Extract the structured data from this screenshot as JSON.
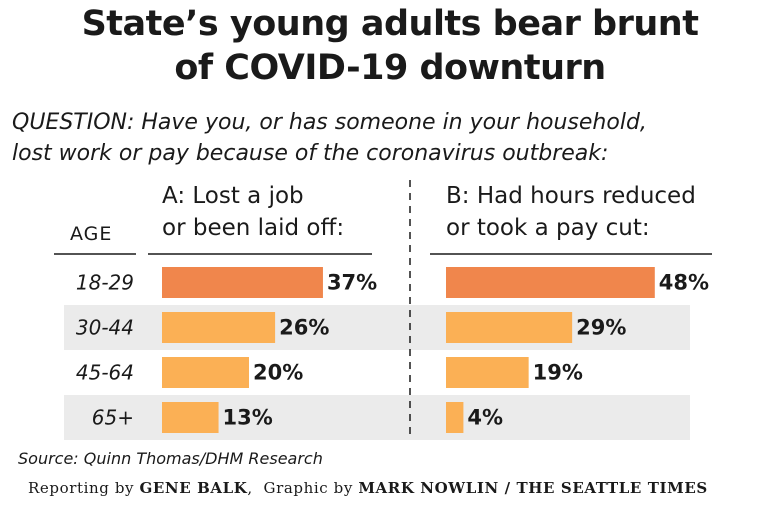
{
  "title_line1": "State’s young adults bear brunt",
  "title_line2": "of COVID-19 downturn",
  "question_line1": "QUESTION: Have you, or has someone in your household,",
  "question_line2": "lost work or pay because of the coronavirus outbreak:",
  "source": "Source: Quinn Thomas/DHM Research",
  "credit": {
    "reporting_prefix": "Reporting by",
    "reporter": "GENE BALK",
    "separator": ",",
    "graphic_prefix": "Graphic by",
    "graphic_by": "MARK NOWLIN / THE SEATTLE TIMES"
  },
  "colors": {
    "highlight_bar": "#f0864c",
    "bar": "#fbb055",
    "stripe": "#ebebeb",
    "text": "#1a1a1a"
  },
  "chart_data": {
    "type": "bar",
    "category_header": "AGE",
    "categories": [
      "18-29",
      "30-44",
      "45-64",
      "65+"
    ],
    "series": [
      {
        "name": "A: Lost a job or been laid off:",
        "header_lines": [
          "A: Lost a job",
          "or been laid off:"
        ],
        "values": [
          37,
          26,
          20,
          13
        ],
        "labels": [
          "37%",
          "26%",
          "20%",
          "13%"
        ]
      },
      {
        "name": "B: Had hours reduced or took a pay cut:",
        "header_lines": [
          "B: Had hours reduced",
          "or took a pay cut:"
        ],
        "values": [
          48,
          29,
          19,
          4
        ],
        "labels": [
          "48%",
          "29%",
          "19%",
          "4%"
        ]
      }
    ],
    "highlight_category": "18-29",
    "orientation": "horizontal"
  }
}
